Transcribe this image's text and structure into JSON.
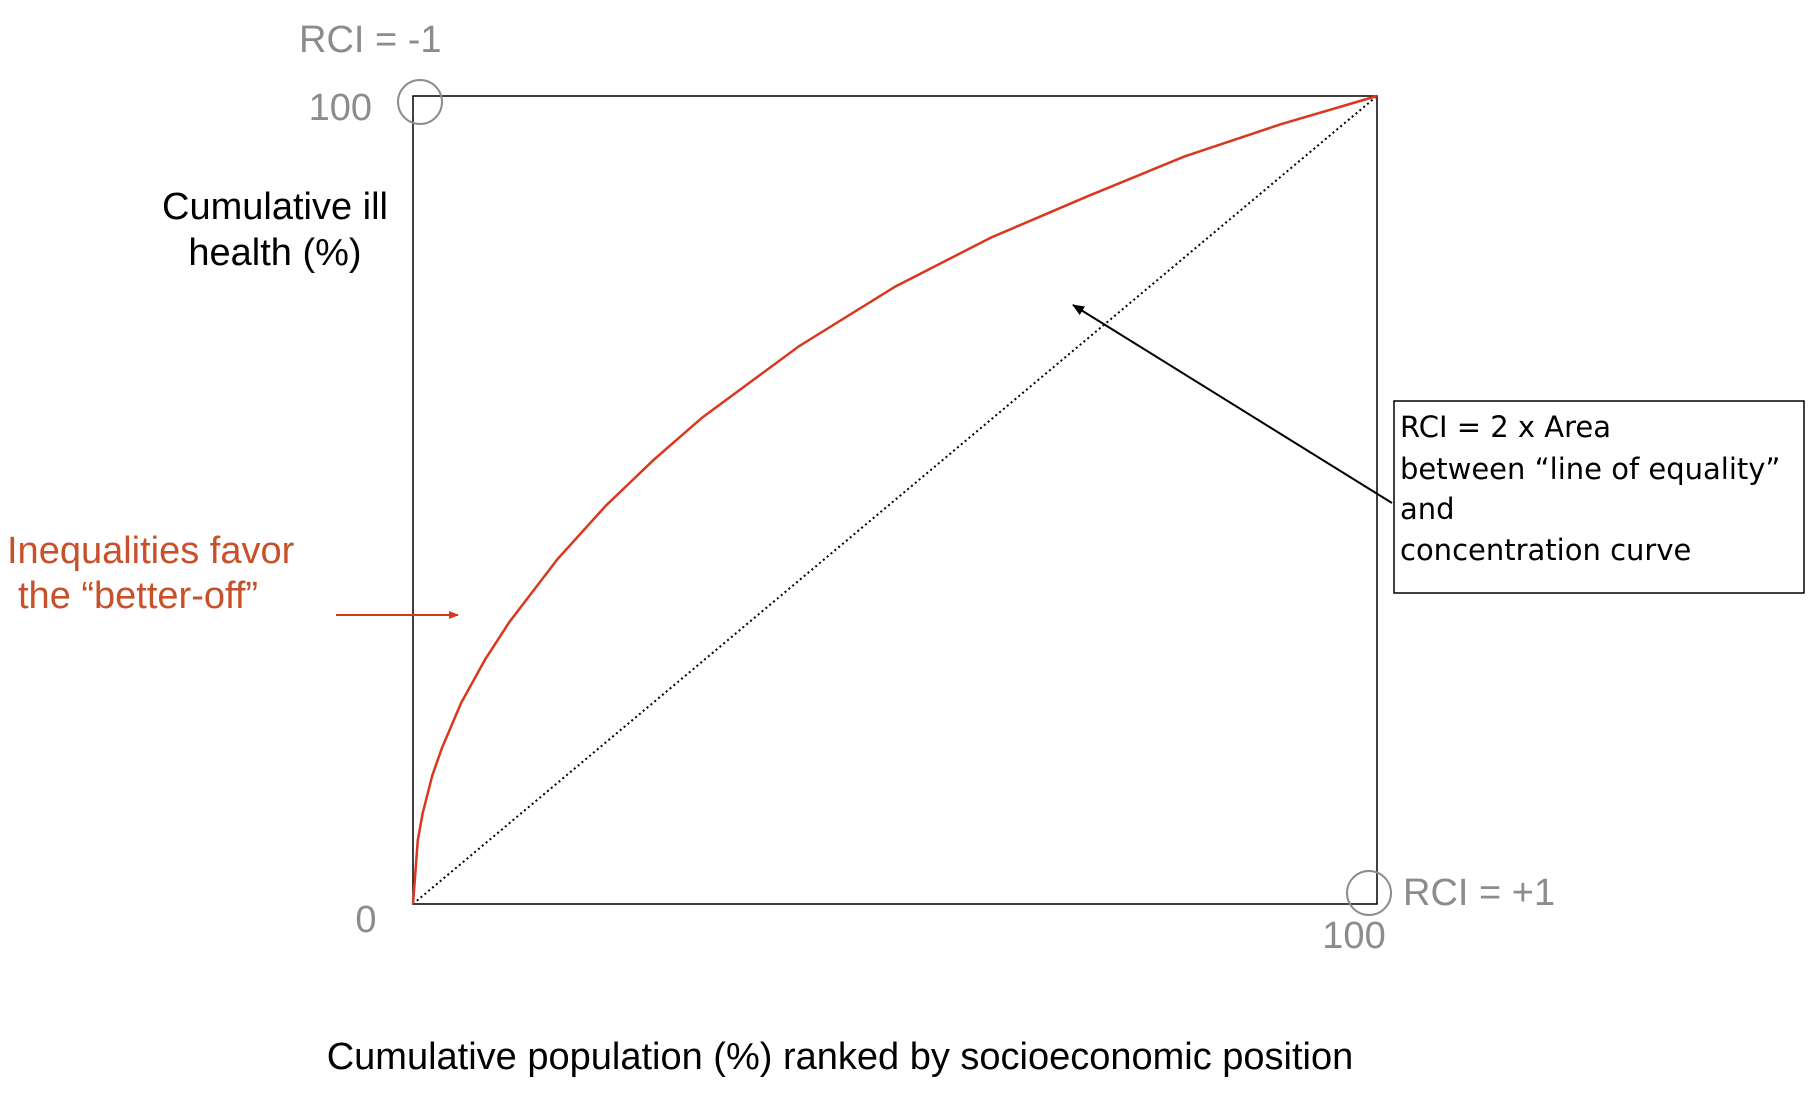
{
  "chart_data": {
    "type": "line",
    "xlabel": "Cumulative population (%) ranked by socioeconomic position",
    "ylabel_line1": "Cumulative ill",
    "ylabel_line2": "health (%)",
    "xlim": [
      0,
      100
    ],
    "ylim": [
      0,
      100
    ],
    "ticks": {
      "origin": "0",
      "x_max": "100",
      "y_max": "100"
    },
    "corner_labels": {
      "top_left": "RCI = -1",
      "bottom_right": "RCI = +1"
    },
    "series": [
      {
        "role": "concentration-curve",
        "color": "#d9371e",
        "x": [
          0,
          0.5,
          1,
          2,
          3,
          5,
          7.5,
          10,
          15,
          20,
          25,
          30,
          40,
          50,
          60,
          70,
          80,
          90,
          100
        ],
        "y": [
          0,
          7.9,
          11.2,
          15.9,
          19.3,
          24.9,
          30.3,
          34.9,
          42.7,
          49.3,
          55.0,
          60.2,
          69.0,
          76.4,
          82.5,
          87.6,
          92.5,
          96.5,
          100
        ]
      },
      {
        "role": "line-of-equality",
        "color": "#000000",
        "x": [
          0,
          100
        ],
        "y": [
          0,
          100
        ]
      }
    ],
    "annotations": {
      "inequality_line1": "Inequalities favor",
      "inequality_line2": "the “better-off”",
      "inequality_color": "#c8502a",
      "rci_box": [
        "RCI = 2 x Area",
        "between “line of equality”",
        "and",
        "concentration curve"
      ]
    }
  }
}
